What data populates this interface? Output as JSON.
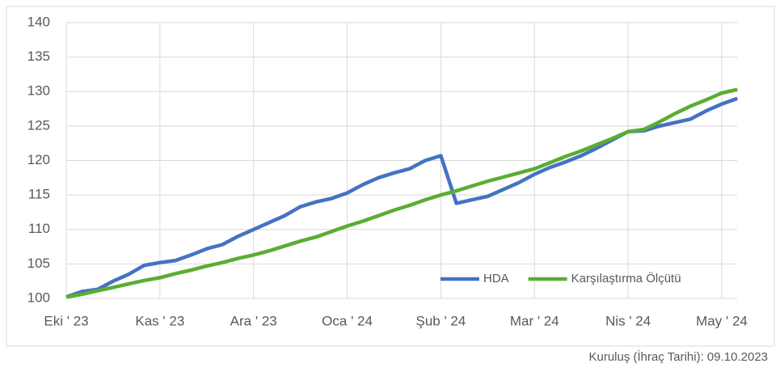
{
  "chart_data": {
    "type": "line",
    "categories": [
      "Eki ' 23",
      null,
      null,
      null,
      null,
      null,
      "Kas ' 23",
      null,
      null,
      null,
      null,
      null,
      "Ara ' 23",
      null,
      null,
      null,
      null,
      null,
      "Oca ' 24",
      null,
      null,
      null,
      null,
      null,
      "Şub ' 24",
      null,
      null,
      null,
      null,
      null,
      "Mar ' 24",
      null,
      null,
      null,
      null,
      null,
      "Nis ' 24",
      null,
      null,
      null,
      null,
      null,
      "May ' 24",
      null
    ],
    "series": [
      {
        "name": "HDA",
        "color": "#4472c4",
        "values": [
          100.2,
          101,
          101.3,
          102.5,
          103.5,
          104.8,
          105.2,
          105.5,
          106.3,
          107.2,
          107.8,
          109,
          110,
          111,
          112,
          113.3,
          114,
          114.5,
          115.3,
          116.5,
          117.5,
          118.2,
          118.8,
          120,
          120.7,
          113.8,
          114.3,
          114.8,
          115.8,
          116.8,
          118,
          119,
          119.8,
          120.7,
          121.8,
          123,
          124.2,
          124.3,
          125,
          125.5,
          126,
          127.2,
          128.2,
          129
        ]
      },
      {
        "name": "Karşılaştırma Ölçütü",
        "color": "#5aad32",
        "values": [
          100.2,
          100.6,
          101.1,
          101.6,
          102.1,
          102.6,
          103,
          103.6,
          104.1,
          104.7,
          105.2,
          105.8,
          106.3,
          106.9,
          107.6,
          108.3,
          108.9,
          109.7,
          110.5,
          111.2,
          112,
          112.8,
          113.5,
          114.3,
          115,
          115.6,
          116.3,
          117,
          117.6,
          118.2,
          118.8,
          119.7,
          120.6,
          121.4,
          122.3,
          123.2,
          124.2,
          124.5,
          125.6,
          126.8,
          127.9,
          128.8,
          129.8,
          130.3
        ]
      }
    ],
    "ylim": [
      100,
      140
    ],
    "yticks": [
      100,
      105,
      110,
      115,
      120,
      125,
      130,
      135,
      140
    ],
    "grid": true,
    "legend": "lower right",
    "footnote": "Kuruluş (İhraç Tarihi): 09.10.2023"
  }
}
